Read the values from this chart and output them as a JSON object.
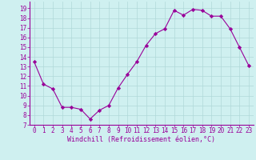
{
  "x": [
    0,
    1,
    2,
    3,
    4,
    5,
    6,
    7,
    8,
    9,
    10,
    11,
    12,
    13,
    14,
    15,
    16,
    17,
    18,
    19,
    20,
    21,
    22,
    23
  ],
  "y": [
    13.5,
    11.2,
    10.7,
    8.8,
    8.8,
    8.6,
    7.6,
    8.5,
    9.0,
    10.8,
    12.2,
    13.5,
    15.2,
    16.4,
    16.9,
    18.8,
    18.3,
    18.9,
    18.8,
    18.2,
    18.2,
    16.9,
    15.0,
    13.1
  ],
  "line_color": "#990099",
  "marker": "D",
  "marker_size": 2.2,
  "background_color": "#cff0f0",
  "grid_color": "#b0d8d8",
  "xlabel": "Windchill (Refroidissement éolien,°C)",
  "xlabel_color": "#990099",
  "ylabel_ticks": [
    7,
    8,
    9,
    10,
    11,
    12,
    13,
    14,
    15,
    16,
    17,
    18,
    19
  ],
  "xlim": [
    -0.5,
    23.5
  ],
  "ylim": [
    7,
    19.7
  ],
  "tick_color": "#990099",
  "spine_color": "#990099",
  "tick_fontsize": 5.5,
  "label_fontsize": 6.0
}
